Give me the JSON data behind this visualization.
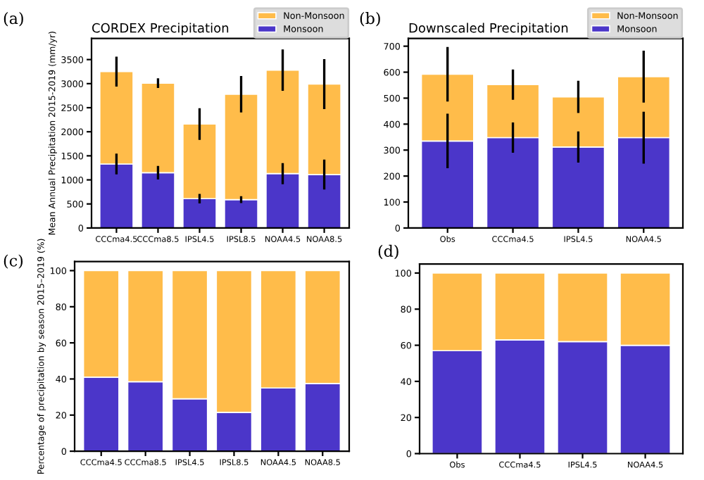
{
  "chart_data": [
    {
      "type": "bar",
      "stacked": true,
      "title": "CORDEX Precipitation",
      "ylabel": "Mean Annual Precipitation 2015-2019 (mm/yr)",
      "annotations": [
        "(a)"
      ],
      "categories": [
        "CCCma4.5",
        "CCCma8.5",
        "IPSL4.5",
        "IPSL8.5",
        "NOAA4.5",
        "NOAA8.5"
      ],
      "series": [
        {
          "name": "Monsoon",
          "color": "#4b36c9",
          "values": [
            1330,
            1150,
            610,
            590,
            1130,
            1110
          ],
          "errors": [
            215,
            140,
            100,
            70,
            220,
            310
          ]
        },
        {
          "name": "Non-Monsoon",
          "color": "#ffbc4a",
          "values": [
            1920,
            1860,
            1550,
            2190,
            2150,
            1880
          ],
          "errors": [
            310,
            100,
            330,
            380,
            430,
            520
          ]
        }
      ],
      "ylim": [
        0,
        3940
      ],
      "yticks": [
        0,
        500,
        1000,
        1500,
        2000,
        2500,
        3000,
        3500
      ],
      "grid": false,
      "legend": "top right"
    },
    {
      "type": "bar",
      "stacked": true,
      "title": "Downscaled Precipitation",
      "annotations": [
        "(b)"
      ],
      "categories": [
        "Obs",
        "CCCma4.5",
        "IPSL4.5",
        "NOAA4.5"
      ],
      "series": [
        {
          "name": "Monsoon",
          "color": "#4b36c9",
          "values": [
            335,
            348,
            312,
            348
          ],
          "errors": [
            105,
            58,
            60,
            100
          ]
        },
        {
          "name": "Non-Monsoon",
          "color": "#ffbc4a",
          "values": [
            257,
            204,
            193,
            235
          ],
          "errors": [
            105,
            58,
            62,
            100
          ]
        }
      ],
      "ylim": [
        0,
        730
      ],
      "yticks": [
        0,
        100,
        200,
        300,
        400,
        500,
        600,
        700
      ],
      "grid": false,
      "legend": "top right"
    },
    {
      "type": "bar",
      "stacked": true,
      "ylabel": "Percentage of precipitation by season 2015–2019 (%)",
      "annotations": [
        "(c)"
      ],
      "categories": [
        "CCCma4.5",
        "CCCma8.5",
        "IPSL4.5",
        "IPSL8.5",
        "NOAA4.5",
        "NOAA8.5"
      ],
      "series": [
        {
          "color": "#4b36c9",
          "values": [
            41,
            38.5,
            29,
            21.5,
            35,
            37.5
          ]
        },
        {
          "color": "#ffbc4a",
          "values": [
            59,
            61.5,
            71,
            78.5,
            65,
            62.5
          ]
        }
      ],
      "ylim": [
        0,
        105
      ],
      "yticks": [
        0,
        20,
        40,
        60,
        80,
        100
      ],
      "grid": false
    },
    {
      "type": "bar",
      "stacked": true,
      "annotations": [
        "(d)"
      ],
      "categories": [
        "Obs",
        "CCCma4.5",
        "IPSL4.5",
        "NOAA4.5"
      ],
      "series": [
        {
          "color": "#4b36c9",
          "values": [
            57,
            63,
            62,
            60
          ]
        },
        {
          "color": "#ffbc4a",
          "values": [
            43,
            37,
            38,
            40
          ]
        }
      ],
      "ylim": [
        0,
        105
      ],
      "yticks": [
        0,
        20,
        40,
        60,
        80,
        100
      ],
      "grid": false
    }
  ]
}
